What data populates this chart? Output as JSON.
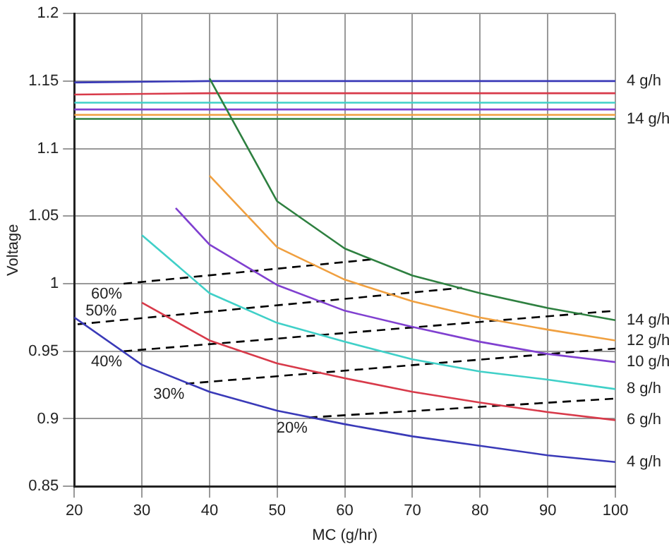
{
  "chart_data": {
    "type": "line",
    "xlabel": "MC (g/hr)",
    "ylabel": "Voltage",
    "xlim": [
      20,
      100
    ],
    "xticks": [
      20,
      30,
      40,
      50,
      60,
      70,
      80,
      90,
      100
    ],
    "ylim": [
      0.85,
      1.2
    ],
    "yticks": [
      0.85,
      0.9,
      0.95,
      1,
      1.05,
      1.1,
      1.15,
      1.2
    ],
    "grid": true,
    "legend": false,
    "marker": "none",
    "series": [
      {
        "color": "#3a3ab8",
        "x": [
          20,
          30,
          40,
          50,
          60,
          70,
          80,
          90,
          100
        ],
        "values": [
          0.975,
          0.94,
          0.92,
          0.906,
          0.896,
          0.887,
          0.88,
          0.873,
          0.868
        ]
      },
      {
        "color": "#d83a4a",
        "x": [
          30,
          40,
          50,
          60,
          70,
          80,
          90,
          100
        ],
        "values": [
          0.986,
          0.958,
          0.941,
          0.93,
          0.92,
          0.912,
          0.905,
          0.899
        ]
      },
      {
        "color": "#40d0c8",
        "x": [
          30,
          40,
          50,
          60,
          70,
          80,
          90,
          100
        ],
        "values": [
          1.036,
          0.993,
          0.971,
          0.957,
          0.944,
          0.935,
          0.929,
          0.922
        ]
      },
      {
        "color": "#8040d0",
        "x": [
          35,
          40,
          50,
          60,
          70,
          80,
          90,
          100
        ],
        "values": [
          1.056,
          1.029,
          0.999,
          0.98,
          0.968,
          0.957,
          0.948,
          0.942
        ]
      },
      {
        "color": "#f0a040",
        "x": [
          40,
          50,
          60,
          70,
          80,
          90,
          100
        ],
        "values": [
          1.08,
          1.027,
          1.003,
          0.987,
          0.975,
          0.966,
          0.958
        ]
      },
      {
        "color": "#2e8040",
        "x": [
          40,
          50,
          60,
          70,
          80,
          90,
          100
        ],
        "values": [
          1.152,
          1.061,
          1.026,
          1.006,
          0.993,
          0.982,
          0.973
        ]
      },
      {
        "color": "#3a3ab8",
        "x": [
          20,
          40,
          100
        ],
        "values": [
          1.149,
          1.15,
          1.15
        ]
      },
      {
        "color": "#d83a4a",
        "x": [
          20,
          40,
          100
        ],
        "values": [
          1.14,
          1.141,
          1.141
        ]
      },
      {
        "color": "#40d0c8",
        "x": [
          20,
          100
        ],
        "values": [
          1.134,
          1.134
        ]
      },
      {
        "color": "#8040d0",
        "x": [
          20,
          100
        ],
        "values": [
          1.129,
          1.129
        ]
      },
      {
        "color": "#f0a040",
        "x": [
          20,
          100
        ],
        "values": [
          1.125,
          1.125
        ]
      },
      {
        "color": "#2e8040",
        "x": [
          20,
          100
        ],
        "values": [
          1.122,
          1.122
        ]
      },
      {
        "color": "#000000",
        "line_style": "dashed",
        "x": [
          27.3,
          64
        ],
        "values": [
          1.0,
          1.018
        ]
      },
      {
        "color": "#000000",
        "line_style": "dashed",
        "x": [
          20.5,
          77.3
        ],
        "values": [
          0.97,
          0.997
        ]
      },
      {
        "color": "#000000",
        "line_style": "dashed",
        "x": [
          27.3,
          100
        ],
        "values": [
          0.95,
          0.98
        ]
      },
      {
        "color": "#000000",
        "line_style": "dashed",
        "x": [
          36.5,
          100
        ],
        "values": [
          0.926,
          0.952
        ]
      },
      {
        "color": "#000000",
        "line_style": "dashed",
        "x": [
          54.7,
          100
        ],
        "values": [
          0.901,
          0.915
        ]
      }
    ],
    "annotations": [
      {
        "text": "4 g/h",
        "x": 100,
        "y": 1.15
      },
      {
        "text": "14 g/h",
        "x": 100,
        "y": 1.122
      },
      {
        "text": "14 g/h",
        "x": 100,
        "y": 0.973
      },
      {
        "text": "12 g/h",
        "x": 100,
        "y": 0.958
      },
      {
        "text": "10 g/h",
        "x": 100,
        "y": 0.942
      },
      {
        "text": "8 g/h",
        "x": 100,
        "y": 0.922
      },
      {
        "text": "6 g/h",
        "x": 100,
        "y": 0.899
      },
      {
        "text": "4 g/h",
        "x": 100,
        "y": 0.868
      },
      {
        "text": "60%",
        "x": 27.3,
        "y": 1.0
      },
      {
        "text": "50%",
        "x": 20.5,
        "y": 0.97
      },
      {
        "text": "40%",
        "x": 27.3,
        "y": 0.95
      },
      {
        "text": "30%",
        "x": 36.5,
        "y": 0.926
      },
      {
        "text": "20%",
        "x": 54.7,
        "y": 0.901
      }
    ]
  }
}
